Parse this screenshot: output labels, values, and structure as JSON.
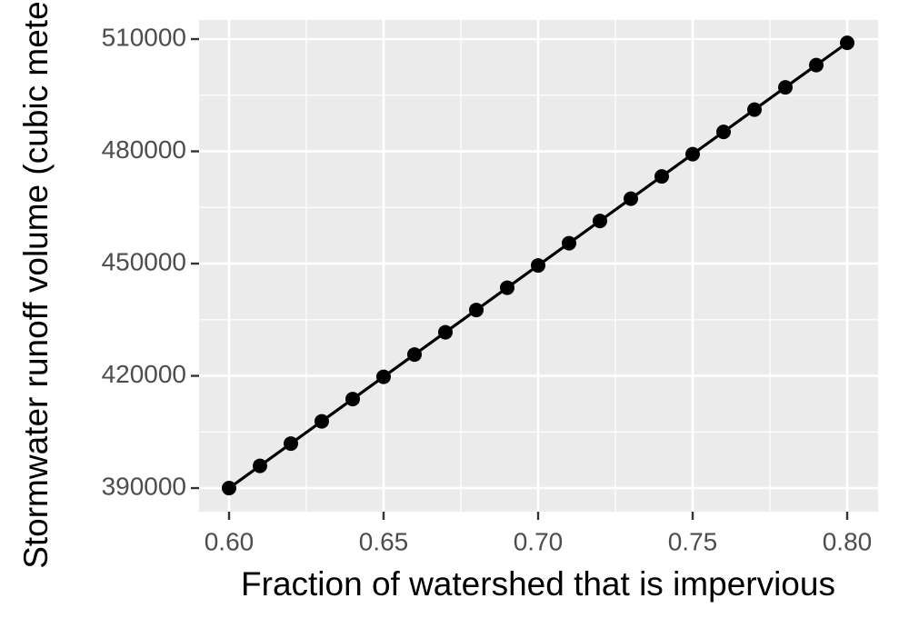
{
  "chart_data": {
    "type": "line",
    "x_label": "Fraction of watershed that is impervious",
    "y_label": "Stormwater runoff volume (cubic meters)",
    "x": [
      0.6,
      0.61,
      0.62,
      0.63,
      0.64,
      0.65,
      0.66,
      0.67,
      0.68,
      0.69,
      0.7,
      0.71,
      0.72,
      0.73,
      0.74,
      0.75,
      0.76,
      0.77,
      0.78,
      0.79,
      0.8
    ],
    "series": [
      {
        "color": "#000000",
        "values": [
          390000,
          395950,
          401900,
          407850,
          413800,
          419750,
          425700,
          431650,
          437600,
          443550,
          449500,
          455450,
          461400,
          467350,
          473300,
          479250,
          485200,
          491150,
          497100,
          503050,
          509000
        ]
      }
    ],
    "xlim": [
      0.5903,
      0.81
    ],
    "ylim": [
      383700,
      515100
    ],
    "xticks": [
      {
        "value": 0.6,
        "label": "0.60"
      },
      {
        "value": 0.65,
        "label": "0.65"
      },
      {
        "value": 0.7,
        "label": "0.70"
      },
      {
        "value": 0.75,
        "label": "0.75"
      },
      {
        "value": 0.8,
        "label": "0.80"
      }
    ],
    "yticks": [
      390000,
      420000,
      450000,
      480000,
      510000
    ],
    "grid": true
  }
}
